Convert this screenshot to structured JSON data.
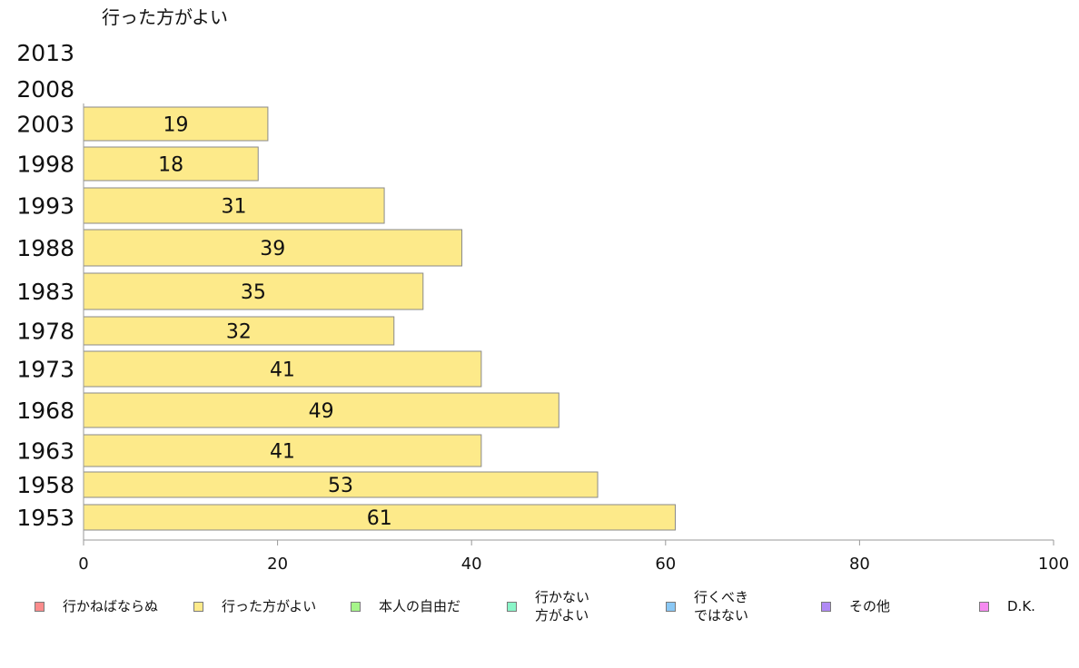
{
  "chart_data": {
    "type": "bar",
    "orientation": "horizontal",
    "title": "行った方がよい",
    "categories": [
      "2013",
      "2008",
      "2003",
      "1998",
      "1993",
      "1988",
      "1983",
      "1978",
      "1973",
      "1968",
      "1963",
      "1958",
      "1953"
    ],
    "values": [
      null,
      null,
      19,
      18,
      31,
      39,
      35,
      32,
      41,
      49,
      41,
      53,
      61
    ],
    "value_labels": [
      "",
      "",
      "19",
      "18",
      "31",
      "39",
      "35",
      "32",
      "41",
      "49",
      "41",
      "53",
      "61"
    ],
    "xlim": [
      0,
      100
    ],
    "x_ticks": [
      "0",
      "20",
      "40",
      "60",
      "80",
      "100"
    ],
    "bar_color": "#fdea8a",
    "bar_border_color": "#8a8a8a",
    "grid": false,
    "legend": {
      "placement": "bottom",
      "items": [
        {
          "label": "行かねばならぬ",
          "color": "#fb8c8c"
        },
        {
          "label": "行った方がよい",
          "color": "#fdea8a"
        },
        {
          "label": "本人の自由だ",
          "color": "#a6f58a"
        },
        {
          "label": "行かない\n方がよい",
          "color": "#8af5c8"
        },
        {
          "label": "行くべき\nではない",
          "color": "#8ac8f5"
        },
        {
          "label": "その他",
          "color": "#b08af5"
        },
        {
          "label": "D.K.",
          "color": "#f58af0"
        }
      ]
    }
  }
}
